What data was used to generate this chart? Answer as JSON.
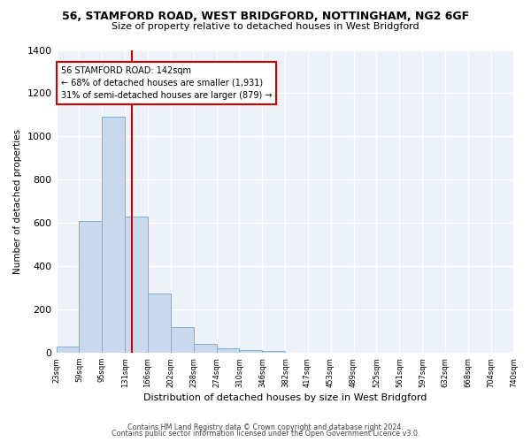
{
  "title": "56, STAMFORD ROAD, WEST BRIDGFORD, NOTTINGHAM, NG2 6GF",
  "subtitle": "Size of property relative to detached houses in West Bridgford",
  "xlabel": "Distribution of detached houses by size in West Bridgford",
  "ylabel": "Number of detached properties",
  "bar_color": "#c9d9ed",
  "bar_edge_color": "#7aafd4",
  "background_color": "#edf1f8",
  "grid_color": "#ffffff",
  "bins": [
    23,
    59,
    95,
    131,
    166,
    202,
    238,
    274,
    310,
    346,
    382,
    417,
    453,
    489,
    525,
    561,
    597,
    632,
    668,
    704,
    740
  ],
  "counts": [
    30,
    610,
    1090,
    630,
    275,
    120,
    40,
    20,
    15,
    8,
    0,
    0,
    0,
    0,
    0,
    0,
    0,
    0,
    0,
    0
  ],
  "property_size": 142,
  "vline_color": "#cc0000",
  "annotation_line1": "56 STAMFORD ROAD: 142sqm",
  "annotation_line2": "← 68% of detached houses are smaller (1,931)",
  "annotation_line3": "31% of semi-detached houses are larger (879) →",
  "annotation_box_color": "#ffffff",
  "annotation_box_edge": "#cc0000",
  "ylim": [
    0,
    1400
  ],
  "yticks": [
    0,
    200,
    400,
    600,
    800,
    1000,
    1200,
    1400
  ],
  "footer1": "Contains HM Land Registry data © Crown copyright and database right 2024.",
  "footer2": "Contains public sector information licensed under the Open Government Licence v3.0."
}
